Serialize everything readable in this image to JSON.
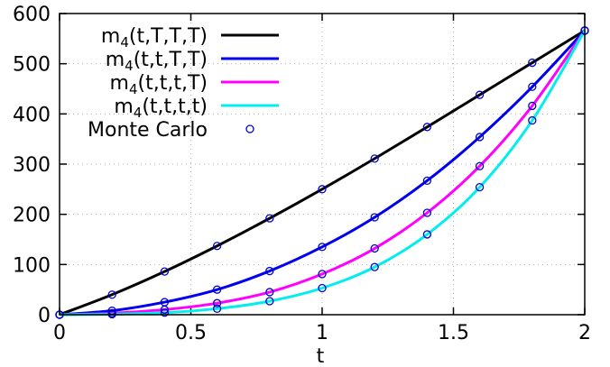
{
  "chart_data": {
    "type": "line",
    "xlabel": "t",
    "ylabel": "",
    "xlim": [
      0,
      2
    ],
    "ylim": [
      0,
      600
    ],
    "xticks": [
      0,
      0.5,
      1,
      1.5,
      2
    ],
    "xtick_labels": [
      "0",
      "0.5",
      "1",
      "1.5",
      "2"
    ],
    "yticks": [
      0,
      100,
      200,
      300,
      400,
      500,
      600
    ],
    "ytick_labels": [
      "0",
      "100",
      "200",
      "300",
      "400",
      "500",
      "600"
    ],
    "grid": true,
    "legend_position": "top-left",
    "x": [
      0,
      0.2,
      0.4,
      0.6,
      0.8,
      1.0,
      1.2,
      1.4,
      1.6,
      1.8,
      2.0
    ],
    "series": [
      {
        "name": "m4(t,T,T,T)",
        "label_main": "m",
        "label_sub": "4",
        "label_args": "(t,T,T,T)",
        "color": "#000000",
        "values": [
          0,
          40,
          86,
          137,
          192,
          250,
          311,
          374,
          438,
          502,
          566
        ]
      },
      {
        "name": "m4(t,t,T,T)",
        "label_main": "m",
        "label_sub": "4",
        "label_args": "(t,t,T,T)",
        "color": "#0000ee",
        "values": [
          0,
          8,
          25,
          50,
          87,
          135,
          194,
          267,
          354,
          454,
          566
        ]
      },
      {
        "name": "m4(t,t,t,T)",
        "label_main": "m",
        "label_sub": "4",
        "label_args": "(t,t,t,T)",
        "color": "#ff00ff",
        "values": [
          0,
          3,
          10,
          23,
          45,
          81,
          132,
          203,
          296,
          416,
          566
        ]
      },
      {
        "name": "m4(t,t,t,t)",
        "label_main": "m",
        "label_sub": "4",
        "label_args": "(t,t,t,t)",
        "color": "#00eeee",
        "values": [
          0,
          1,
          4,
          12,
          27,
          53,
          95,
          160,
          254,
          387,
          566
        ]
      }
    ],
    "monte_carlo": {
      "name": "Monte Carlo",
      "color": "#0000cc"
    }
  }
}
